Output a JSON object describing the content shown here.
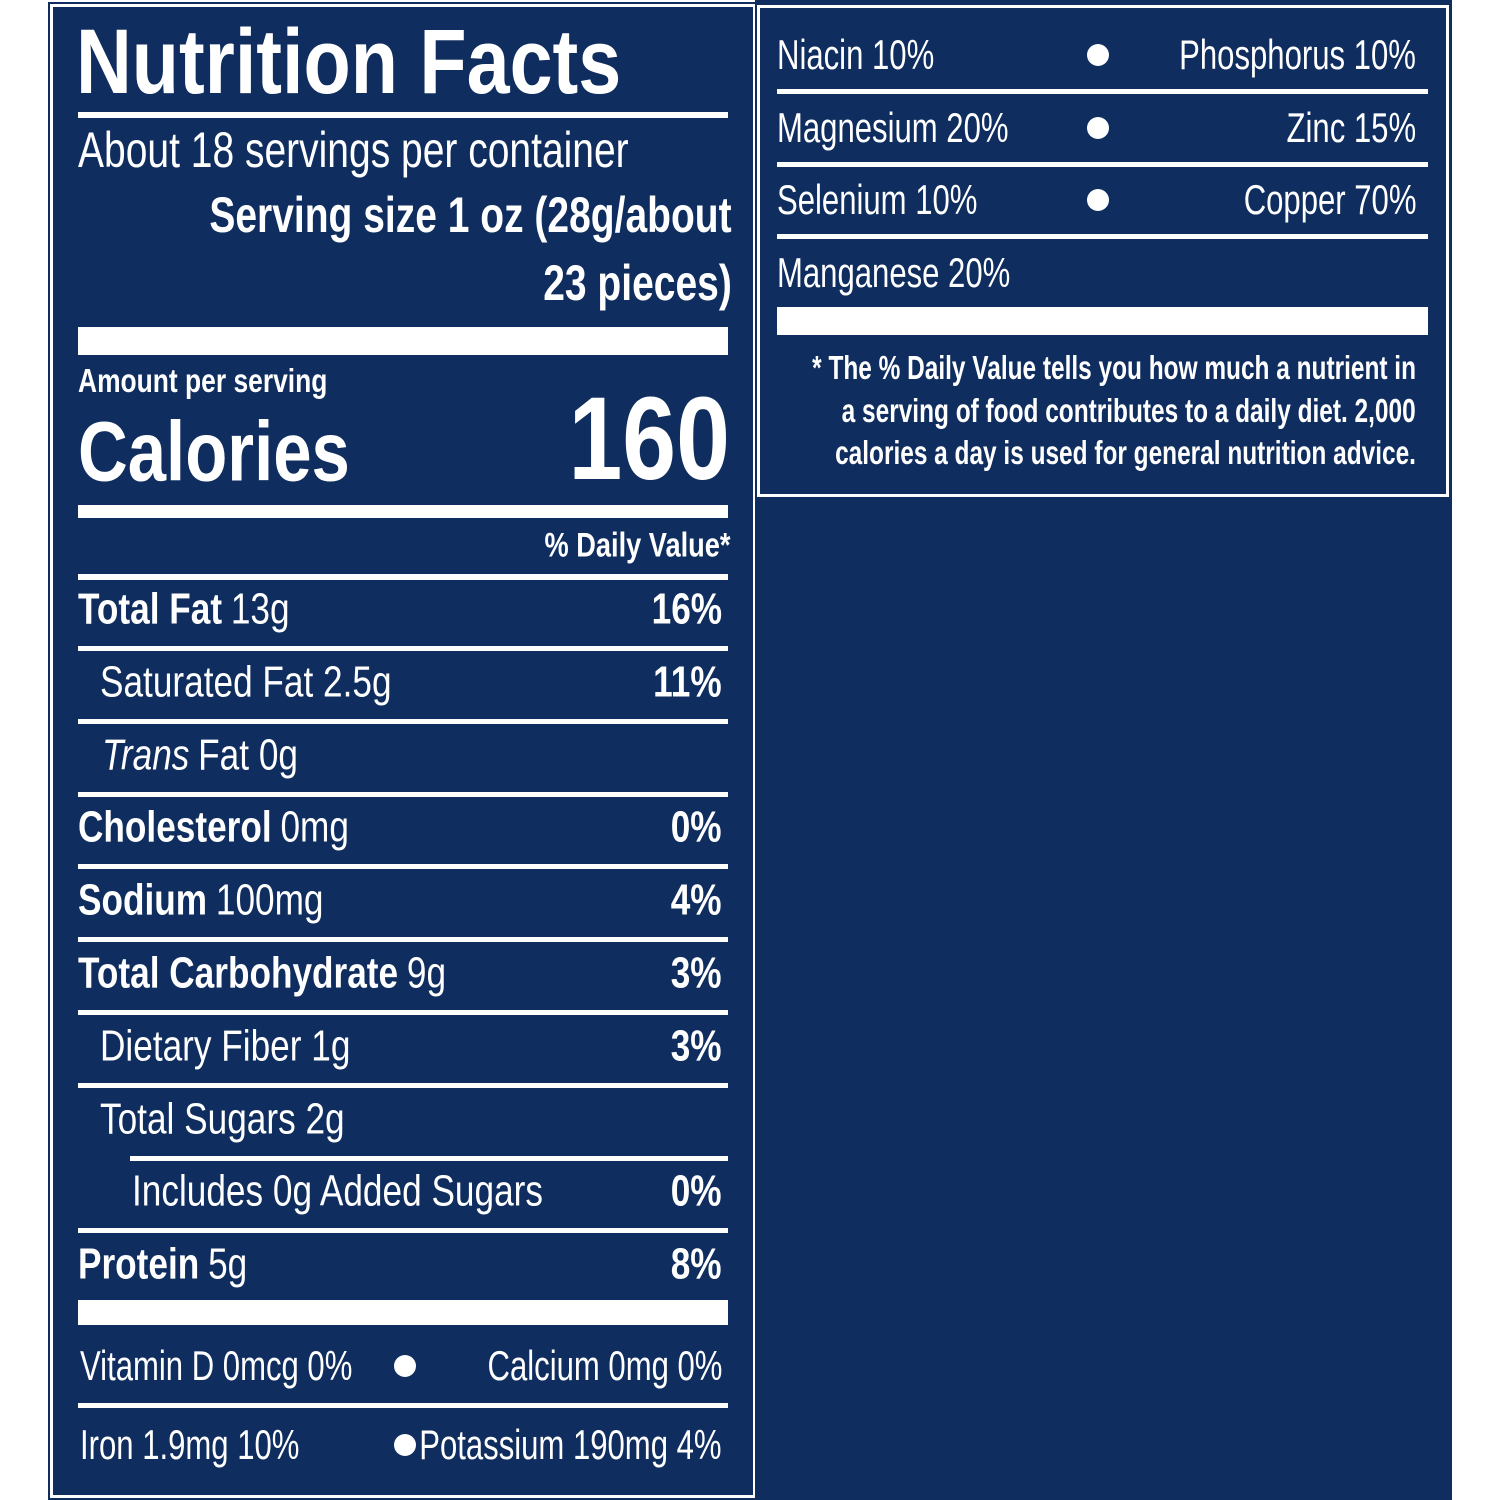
{
  "header": {
    "title": "Nutrition Facts",
    "servings": "About 18 servings per container",
    "serving_size_lines": [
      "Serving size 1 oz (28g/about",
      "23 pieces)"
    ]
  },
  "calories": {
    "amount_label": "Amount per serving",
    "label": "Calories",
    "value": "160"
  },
  "dv_heading": "% Daily Value*",
  "nutrients": [
    {
      "bold": "Total Fat",
      "text": "13g",
      "dv": "16%"
    },
    {
      "text": "Saturated Fat 2.5g",
      "dv": "11%"
    },
    {
      "italic": "Trans",
      "text": "Fat 0g"
    },
    {
      "bold": "Cholesterol",
      "text": "0mg",
      "dv": "0%"
    },
    {
      "bold": "Sodium",
      "text": "100mg",
      "dv": "4%"
    },
    {
      "bold": "Total Carbohydrate",
      "text": "9g",
      "dv": "3%"
    },
    {
      "text": "Dietary Fiber 1g",
      "dv": "3%"
    },
    {
      "text": "Total Sugars 2g"
    },
    {
      "text": "Includes 0g Added Sugars",
      "dv": "0%"
    },
    {
      "bold": "Protein",
      "text": "5g",
      "dv": "8%"
    }
  ],
  "vitamins": [
    {
      "left": "Vitamin D 0mcg 0%",
      "right": "Calcium 0mg 0%"
    },
    {
      "left": "Iron 1.9mg 10%",
      "right": "Potassium 190mg 4%"
    }
  ],
  "minerals": [
    {
      "left": "Niacin 10%",
      "right": "Phosphorus 10%"
    },
    {
      "left": "Magnesium 20%",
      "right": "Zinc 15%"
    },
    {
      "left": "Selenium 10%",
      "right": "Copper 70%"
    },
    {
      "left": "Manganese 20%"
    }
  ],
  "footnote": [
    "* The % Daily Value tells you how much a nutrient in",
    "a serving of food contributes to a daily diet. 2,000",
    "calories a day is used for general nutrition advice."
  ]
}
